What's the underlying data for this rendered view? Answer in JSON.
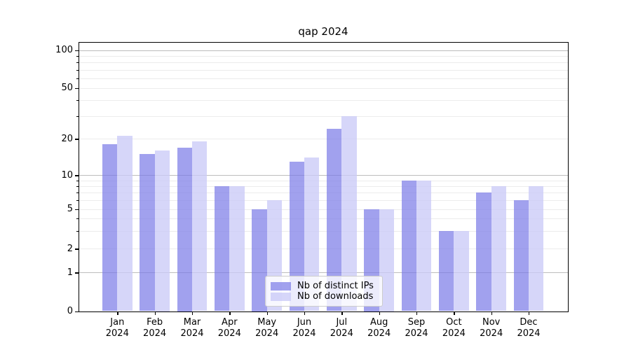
{
  "title": "qap 2024",
  "chart_data": {
    "type": "bar",
    "title": "qap 2024",
    "categories": [
      "Jan",
      "Feb",
      "Mar",
      "Apr",
      "May",
      "Jun",
      "Jul",
      "Aug",
      "Sep",
      "Oct",
      "Nov",
      "Dec"
    ],
    "x_tick_year": "2024",
    "series": [
      {
        "name": "Nb of distinct IPs",
        "color": "rgba(125,125,231,0.72)",
        "values": [
          18,
          15,
          17,
          8,
          5,
          13,
          24,
          5,
          9,
          3,
          7,
          6
        ]
      },
      {
        "name": "Nb of downloads",
        "color": "rgba(203,203,247,0.78)",
        "values": [
          21,
          16,
          19,
          8,
          6,
          14,
          30,
          5,
          9,
          3,
          8,
          8
        ]
      }
    ],
    "y_ticks": [
      0,
      1,
      2,
      5,
      10,
      20,
      50,
      100
    ],
    "y_scale": "log-like (compressed toward zero)",
    "ylim": [
      0,
      113
    ],
    "xlabel": "",
    "ylabel": "",
    "grid": "major and minor horizontal gridlines",
    "legend_position": "lower center inside plot"
  },
  "colors": {
    "background": "#ffffff",
    "axis": "#000000",
    "major_grid": "#bcbcbc",
    "minor_grid": "#ececec",
    "legend_border": "#cccccc"
  }
}
